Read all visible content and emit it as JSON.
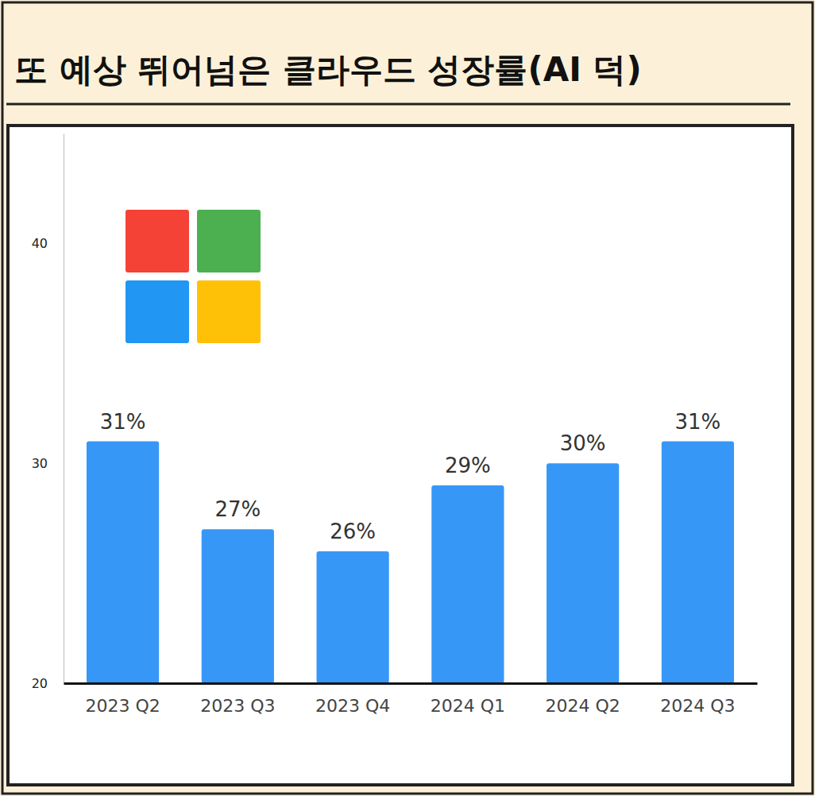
{
  "chart_data": {
    "type": "bar",
    "title": "또 예상 뛰어넘은 클라우드 성장률(AI 덕)",
    "categories": [
      "2023 Q2",
      "2023 Q3",
      "2023 Q4",
      "2024 Q1",
      "2024 Q2",
      "2024 Q3"
    ],
    "values": [
      31,
      27,
      26,
      29,
      30,
      31
    ],
    "value_labels": [
      "31%",
      "27%",
      "26%",
      "29%",
      "30%",
      "31%"
    ],
    "color": "#3797f6",
    "ylim": [
      20,
      45
    ],
    "yticks": [
      20,
      30,
      40
    ],
    "data_labels": true,
    "grid": false
  }
}
